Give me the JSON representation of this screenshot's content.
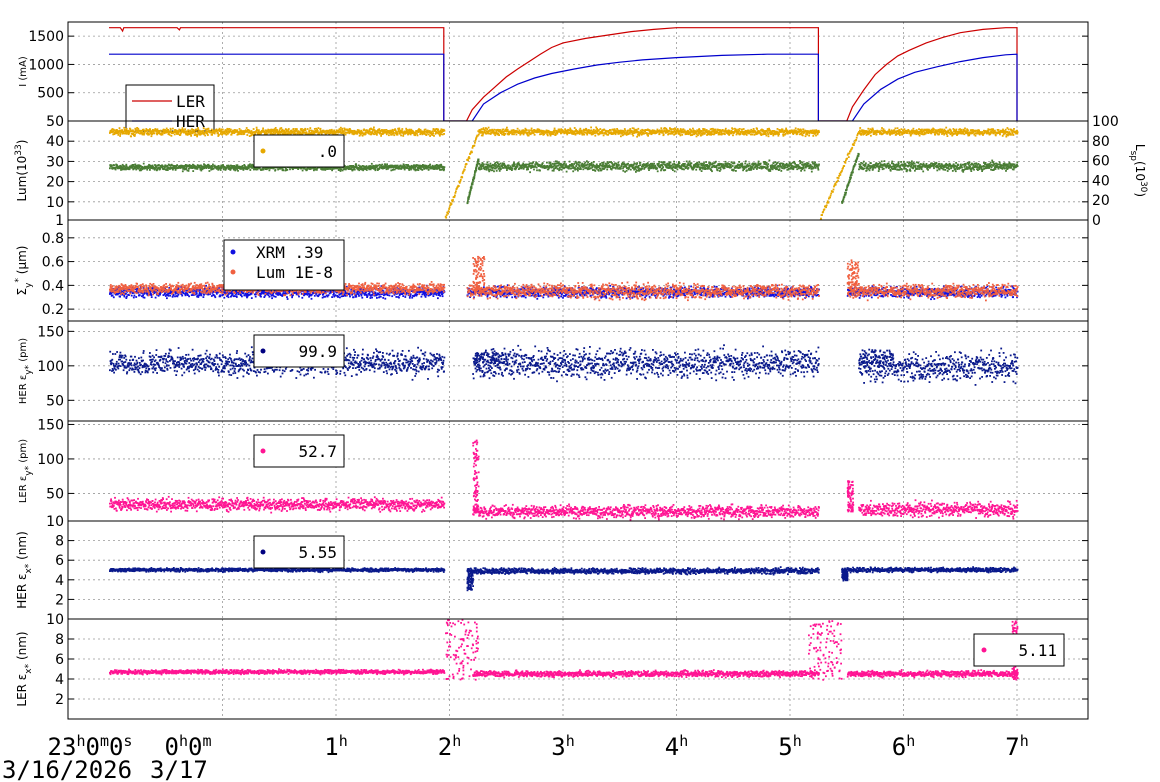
{
  "chart_data": {
    "type": "scatter",
    "x_axis": {
      "tick_hours": [
        0,
        1,
        2,
        3,
        4,
        5,
        6,
        7,
        8
      ],
      "tick_labels": [
        {
          "base": "23",
          "sup": "h",
          "base2": "0",
          "sup2": "m",
          "base3": "0",
          "sup3": "s"
        },
        {
          "base": "0",
          "sup": "h",
          "base2": "0",
          "sup2": "m"
        },
        {
          "base": "1",
          "sup": "h"
        },
        {
          "base": "2",
          "sup": "h"
        },
        {
          "base": "3",
          "sup": "h"
        },
        {
          "base": "4",
          "sup": "h"
        },
        {
          "base": "5",
          "sup": "h"
        },
        {
          "base": "6",
          "sup": "h"
        },
        {
          "base": "7",
          "sup": "h"
        }
      ],
      "dates": [
        "3/16/2026",
        "3/17"
      ]
    },
    "panels": [
      {
        "id": "current",
        "ylabel": "I (mA)",
        "ylim": [
          0,
          1750
        ],
        "yticks": [
          "500",
          "1000",
          "1500"
        ],
        "legend": [
          {
            "name": "LER",
            "color": "#cc0000"
          },
          {
            "name": "HER",
            "color": "#0000cc"
          }
        ],
        "series": [
          {
            "name": "LER",
            "color": "#cc0000",
            "style": "line",
            "points": [
              [
                0,
                1650
              ],
              [
                0.1,
                1650
              ],
              [
                0.12,
                1590
              ],
              [
                0.13,
                1650
              ],
              [
                0.6,
                1650
              ],
              [
                0.62,
                1610
              ],
              [
                0.63,
                1650
              ],
              [
                2.95,
                1650
              ],
              [
                2.95,
                0
              ],
              [
                3.15,
                0
              ],
              [
                3.2,
                200
              ],
              [
                3.3,
                420
              ],
              [
                3.4,
                600
              ],
              [
                3.5,
                780
              ],
              [
                3.6,
                920
              ],
              [
                3.7,
                1050
              ],
              [
                3.8,
                1180
              ],
              [
                3.9,
                1300
              ],
              [
                4.0,
                1380
              ],
              [
                4.2,
                1460
              ],
              [
                4.4,
                1520
              ],
              [
                4.6,
                1580
              ],
              [
                4.8,
                1620
              ],
              [
                5.0,
                1650
              ],
              [
                6.25,
                1650
              ],
              [
                6.25,
                0
              ],
              [
                6.5,
                0
              ],
              [
                6.55,
                250
              ],
              [
                6.65,
                550
              ],
              [
                6.75,
                820
              ],
              [
                6.85,
                1000
              ],
              [
                6.95,
                1150
              ],
              [
                7.05,
                1250
              ],
              [
                7.2,
                1380
              ],
              [
                7.35,
                1480
              ],
              [
                7.5,
                1560
              ],
              [
                7.7,
                1620
              ],
              [
                7.9,
                1650
              ],
              [
                8.0,
                1650
              ],
              [
                8.0,
                0
              ]
            ]
          },
          {
            "name": "HER",
            "color": "#0000cc",
            "style": "line",
            "points": [
              [
                0,
                1180
              ],
              [
                2.95,
                1180
              ],
              [
                2.95,
                0
              ],
              [
                3.2,
                0
              ],
              [
                3.3,
                300
              ],
              [
                3.45,
                500
              ],
              [
                3.6,
                650
              ],
              [
                3.75,
                760
              ],
              [
                3.9,
                840
              ],
              [
                4.1,
                920
              ],
              [
                4.3,
                990
              ],
              [
                4.5,
                1040
              ],
              [
                4.7,
                1080
              ],
              [
                5.0,
                1120
              ],
              [
                5.4,
                1160
              ],
              [
                5.8,
                1180
              ],
              [
                6.25,
                1180
              ],
              [
                6.25,
                0
              ],
              [
                6.55,
                0
              ],
              [
                6.65,
                300
              ],
              [
                6.8,
                560
              ],
              [
                6.95,
                740
              ],
              [
                7.1,
                860
              ],
              [
                7.3,
                960
              ],
              [
                7.5,
                1050
              ],
              [
                7.7,
                1120
              ],
              [
                7.9,
                1170
              ],
              [
                8.0,
                1180
              ],
              [
                8.0,
                0
              ]
            ]
          }
        ]
      },
      {
        "id": "lum",
        "ylabel": "Lum(10",
        "ylabel_sup": "33",
        "ylabel_end": ")",
        "ylabel_right": "L",
        "ylabel_right_sub": "sp",
        "ylabel_right_mid": "(10",
        "ylabel_right_sup": "30",
        "ylabel_right_end": ")",
        "ylim": [
          1,
          50
        ],
        "yticks": [
          "1",
          "10",
          "20",
          "30",
          "40",
          "50"
        ],
        "yticks_right": [
          "0",
          "20",
          "40",
          "60",
          "80",
          "100"
        ],
        "legend": [
          {
            "name": ".0",
            "color": "#e6a800"
          }
        ],
        "series": [
          {
            "name": "Lum",
            "color": "#e6a800",
            "style": "dots",
            "segments": [
              [
                0,
                2.95,
                45,
                1.2
              ],
              [
                3.25,
                6.25,
                45,
                1.2
              ],
              [
                6.6,
                8,
                45,
                1.2
              ]
            ],
            "ramps": [
              [
                2.95,
                3.25,
                1,
                45
              ],
              [
                6.25,
                6.6,
                1,
                45
              ]
            ]
          },
          {
            "name": "Lsp",
            "color": "#4a7d35",
            "style": "dots",
            "segments": [
              [
                0,
                2.95,
                27.5,
                1.0
              ],
              [
                3.25,
                6.25,
                28,
                1.5
              ],
              [
                6.6,
                8,
                28,
                1.5
              ]
            ],
            "ramps": [
              [
                3.15,
                3.25,
                10,
                32
              ],
              [
                6.45,
                6.6,
                10,
                35
              ]
            ]
          }
        ]
      },
      {
        "id": "sigma",
        "ylabel": "Σ",
        "ylabel_sub": "y",
        "ylabel_sup": "*",
        "ylabel_end": " (μm)",
        "ylim": [
          0.1,
          0.95
        ],
        "yticks": [
          "0.2",
          "0.4",
          "0.6",
          "0.8"
        ],
        "legend": [
          {
            "name": "XRM  .39",
            "color": "#1010e0"
          },
          {
            "name": "Lum 1E-8",
            "color": "#f06040"
          }
        ],
        "series": [
          {
            "name": "XRM",
            "color": "#1010e0",
            "style": "dots",
            "segments": [
              [
                0,
                2.95,
                0.35,
                0.03
              ],
              [
                3.15,
                6.25,
                0.35,
                0.03
              ],
              [
                6.5,
                8,
                0.35,
                0.03
              ]
            ]
          },
          {
            "name": "Lum",
            "color": "#f06040",
            "style": "dots",
            "segments": [
              [
                0,
                2.95,
                0.38,
                0.03
              ],
              [
                3.15,
                6.25,
                0.36,
                0.04
              ],
              [
                6.5,
                8,
                0.36,
                0.04
              ]
            ],
            "spikes": [
              [
                3.2,
                3.3,
                0.65
              ],
              [
                6.5,
                6.6,
                0.62
              ]
            ]
          }
        ]
      },
      {
        "id": "her_ey",
        "ylabel": "HER ε",
        "ylabel_sub": "y*",
        "ylabel_end": " (pm)",
        "ylim": [
          20,
          165
        ],
        "yticks": [
          "50",
          "100",
          "150"
        ],
        "legend": [
          {
            "name": "99.9",
            "color": "#000080"
          }
        ],
        "series": [
          {
            "name": "HER ey",
            "color": "#0a1a8c",
            "style": "dots",
            "segments": [
              [
                0,
                2.95,
                105,
                12
              ],
              [
                3.2,
                6.25,
                105,
                14
              ],
              [
                6.6,
                8,
                100,
                14
              ]
            ],
            "spikes": [
              [
                3.2,
                3.5,
                120
              ],
              [
                6.6,
                6.9,
                125
              ]
            ]
          }
        ]
      },
      {
        "id": "ler_ey",
        "ylabel": "LER ε",
        "ylabel_sub": "y*",
        "ylabel_end": " (pm)",
        "ylim": [
          10,
          155
        ],
        "yticks": [
          "10",
          "50",
          "100",
          "150"
        ],
        "legend": [
          {
            "name": "52.7",
            "color": "#ff1493"
          }
        ],
        "series": [
          {
            "name": "LER ey",
            "color": "#ff1493",
            "style": "dots",
            "segments": [
              [
                0,
                2.95,
                35,
                6
              ],
              [
                3.2,
                6.25,
                25,
                6
              ],
              [
                6.6,
                8,
                28,
                7
              ]
            ],
            "spikes": [
              [
                3.2,
                3.25,
                130
              ],
              [
                6.5,
                6.55,
                70
              ]
            ]
          }
        ]
      },
      {
        "id": "her_ex",
        "ylabel": "HER ε",
        "ylabel_sub": "x*",
        "ylabel_end": " (nm)",
        "ylim": [
          0,
          10
        ],
        "yticks": [
          "2",
          "4",
          "6",
          "8"
        ],
        "legend": [
          {
            "name": "5.55",
            "color": "#000080"
          }
        ],
        "series": [
          {
            "name": "HER ex",
            "color": "#0a1a8c",
            "style": "dots",
            "segments": [
              [
                0,
                2.95,
                5.1,
                0.12
              ],
              [
                3.15,
                6.25,
                5.0,
                0.2
              ],
              [
                6.45,
                8,
                5.1,
                0.15
              ]
            ],
            "spikes": [
              [
                3.15,
                3.2,
                3.0
              ],
              [
                6.45,
                6.5,
                4.0
              ]
            ]
          }
        ]
      },
      {
        "id": "ler_ex",
        "ylabel": "LER ε",
        "ylabel_sub": "x*",
        "ylabel_end": " (nm)",
        "ylim": [
          0,
          10
        ],
        "yticks": [
          "2",
          "4",
          "6",
          "8",
          "10"
        ],
        "legend": [
          {
            "name": "5.11",
            "color": "#ff1493"
          }
        ],
        "series": [
          {
            "name": "LER ex",
            "color": "#ff1493",
            "style": "dots",
            "segments": [
              [
                0,
                2.95,
                4.8,
                0.15
              ],
              [
                3.2,
                6.25,
                4.6,
                0.2
              ],
              [
                6.5,
                8,
                4.6,
                0.2
              ]
            ],
            "noise": [
              [
                2.95,
                3.25,
                6
              ],
              [
                6.15,
                6.45,
                6
              ],
              [
                7.95,
                8.0,
                6
              ]
            ]
          }
        ]
      }
    ]
  }
}
